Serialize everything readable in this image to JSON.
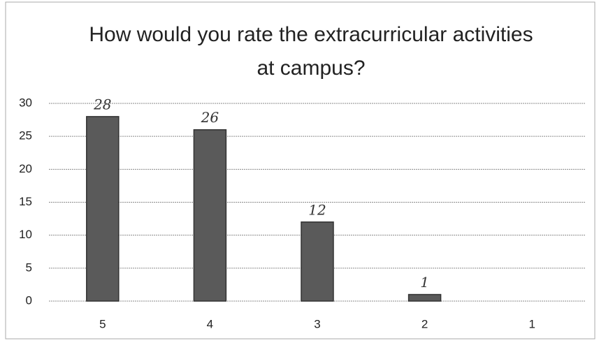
{
  "chart_data": {
    "type": "bar",
    "title": "How would you rate the extracurricular activities at campus?",
    "categories": [
      "5",
      "4",
      "3",
      "2",
      "1"
    ],
    "values": [
      28,
      26,
      12,
      1,
      0
    ],
    "value_labels": [
      "28",
      "26",
      "12",
      "1",
      null
    ],
    "color": "#5a5a5a",
    "ylim": [
      0,
      30
    ],
    "yticks": [
      0,
      5,
      10,
      15,
      20,
      25,
      30
    ],
    "grid": true
  }
}
